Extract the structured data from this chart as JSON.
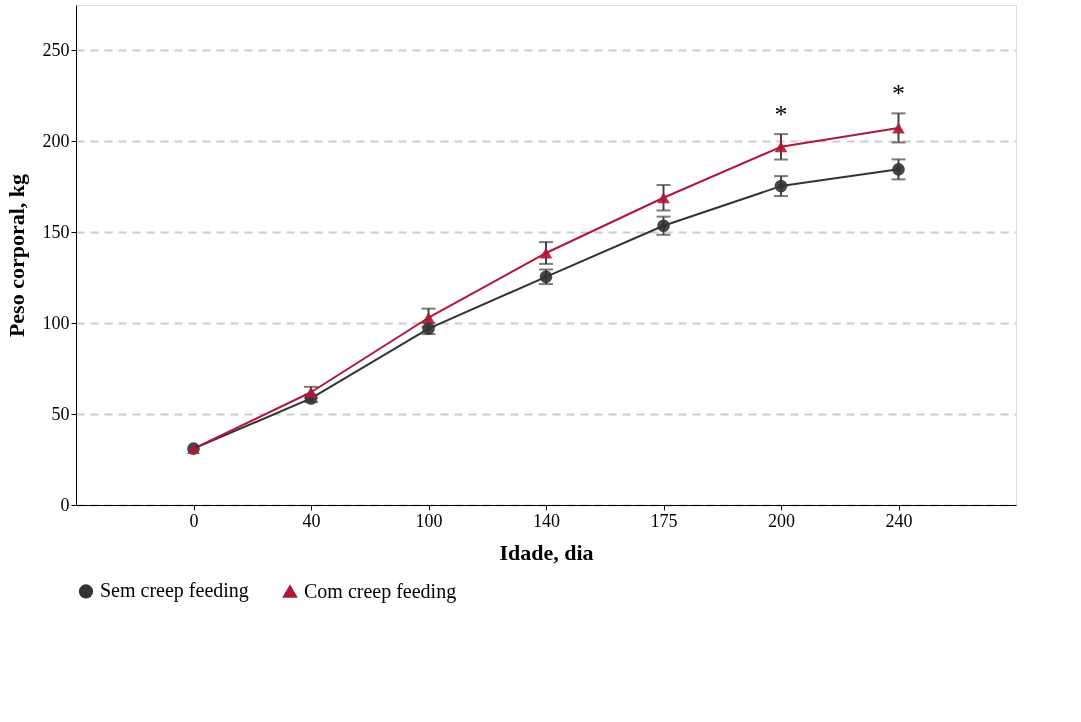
{
  "chart_data": {
    "type": "line",
    "xlabel": "Idade, dia",
    "ylabel": "Peso corporal, kg",
    "categories": [
      "0",
      "40",
      "100",
      "140",
      "175",
      "200",
      "240"
    ],
    "series": [
      {
        "name": "Sem creep feeding",
        "color": "#333333",
        "marker": "circle",
        "values": [
          31,
          58.6,
          97,
          125.5,
          153.6,
          175.4,
          184.6
        ],
        "errors": [
          null,
          2,
          3,
          4,
          5,
          5.5,
          5.5
        ]
      },
      {
        "name": "Com creep feeding",
        "color": "#b0173a",
        "marker": "triangle",
        "values": [
          31,
          62,
          103,
          138.6,
          169,
          197,
          207.4
        ],
        "errors": [
          null,
          3,
          5,
          6,
          7,
          7,
          8
        ]
      }
    ],
    "ylim": [
      0,
      275
    ],
    "yticks": [
      0,
      50,
      100,
      150,
      200,
      250
    ],
    "grid": "y",
    "legend": "bottom",
    "line_style": "solid",
    "annotations": [
      "*",
      "*"
    ]
  }
}
